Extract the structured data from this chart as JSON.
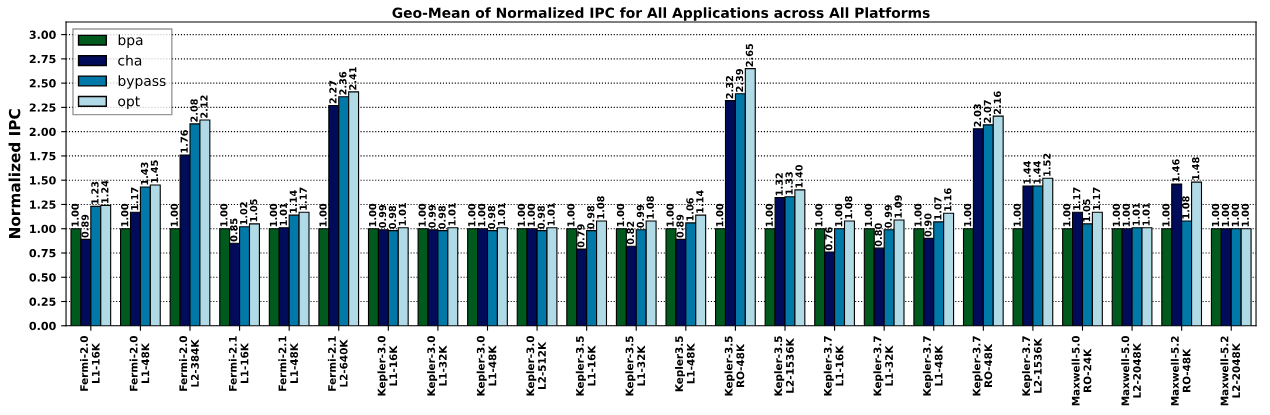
{
  "chart_data": {
    "type": "bar",
    "title": "Geo-Mean of Normalized IPC for All Applications across All Platforms",
    "ylabel": "Normalized IPC",
    "categories": [
      "Fermi-2.0\nL1-16K",
      "Fermi-2.0\nL1-48K",
      "Fermi-2.0\nL2-384K",
      "Fermi-2.1\nL1-16K",
      "Fermi-2.1\nL1-48K",
      "Fermi-2.1\nL2-640K",
      "Kepler-3.0\nL1-16K",
      "Kepler-3.0\nL1-32K",
      "Kepler-3.0\nL1-48K",
      "Kepler-3.0\nL2-512K",
      "Kepler-3.5\nL1-16K",
      "Kepler-3.5\nL1-32K",
      "Kepler3.5\nL1-48K",
      "Kepler-3.5\nRO-48K",
      "Kepler-3.5\nL2-1536K",
      "Kepler-3.7\nL1-16K",
      "Kepler-3.7\nL1-32K",
      "Kepler-3.7\nL1-48K",
      "Kepler-3.7\nRO-48K",
      "Kepler-3.7\nL2-1536K",
      "Maxwell-5.0\nRO-24K",
      "Maxwell-5.0\nL2-2048K",
      "Maxwell-5.2\nRO-48K",
      "Maxwell-5.2\nL2-2048K"
    ],
    "series": [
      {
        "name": "bpa",
        "color": "#005a1e",
        "values": [
          1.0,
          1.0,
          1.0,
          1.0,
          1.0,
          1.0,
          1.0,
          1.0,
          1.0,
          1.0,
          1.0,
          1.0,
          1.0,
          1.0,
          1.0,
          1.0,
          1.0,
          1.0,
          1.0,
          1.0,
          1.0,
          1.0,
          1.0,
          1.0
        ],
        "value_labels": [
          "1.00",
          "1.00",
          "1.00",
          "1.00",
          "1.00",
          "1.00",
          "1.00",
          "1.00",
          "1.00",
          "1.00",
          "1.00",
          "1.00",
          "1.00",
          "1.00",
          "1.00",
          "1.00",
          "1.00",
          "1.00",
          "1.00",
          "1.00",
          "1.00",
          "1.00",
          "1.00",
          "1.00"
        ]
      },
      {
        "name": "cha",
        "color": "#000c5a",
        "values": [
          0.89,
          1.17,
          1.76,
          0.85,
          1.01,
          2.27,
          0.99,
          0.99,
          1.0,
          1.0,
          0.79,
          0.82,
          0.89,
          2.32,
          1.32,
          0.76,
          0.8,
          0.9,
          2.03,
          1.44,
          1.17,
          1.0,
          1.46,
          1.0
        ],
        "value_labels": [
          "0.89",
          "1.17",
          "1.76",
          "0.85",
          "1.01",
          "2.27",
          "0.99",
          "0.99",
          "1.00",
          "1.00",
          "0.79",
          "0.82",
          "0.89",
          "2.32",
          "1.32",
          "0.76",
          "0.80",
          "0.90",
          "2.03",
          "1.44",
          "1.17",
          "1.00",
          "1.46",
          "1.00"
        ]
      },
      {
        "name": "bypass",
        "color": "#0078a8",
        "values": [
          1.23,
          1.43,
          2.08,
          1.02,
          1.14,
          2.36,
          0.98,
          0.98,
          0.98,
          0.98,
          0.98,
          0.99,
          1.06,
          2.39,
          1.33,
          1.0,
          0.99,
          1.07,
          2.07,
          1.44,
          1.05,
          1.01,
          1.08,
          1.0
        ],
        "value_labels": [
          "1.23",
          "1.43",
          "2.08",
          "1.02",
          "1.14",
          "2.36",
          "0.98",
          "0.98",
          "0.98",
          "0.98",
          "0.98",
          "0.99",
          "1.06",
          "2.39",
          "1.33",
          "1.00",
          "0.99",
          "1.07",
          "2.07",
          "1.44",
          "1.05",
          "1.01",
          "1.08",
          "1.00"
        ]
      },
      {
        "name": "opt",
        "color": "#b0dae6",
        "values": [
          1.24,
          1.45,
          2.12,
          1.05,
          1.17,
          2.41,
          1.01,
          1.01,
          1.01,
          1.01,
          1.08,
          1.08,
          1.14,
          2.65,
          1.4,
          1.08,
          1.09,
          1.16,
          2.16,
          1.52,
          1.17,
          1.01,
          1.48,
          1.0
        ],
        "value_labels": [
          "1.24",
          "1.45",
          "2.12",
          "1.05",
          "1.17",
          "2.41",
          "1.01",
          "1.01",
          "1.01",
          "1.01",
          "1.08",
          "1.08",
          "1.14",
          "2.65",
          "1.40",
          "1.08",
          "1.09",
          "1.16",
          "2.16",
          "1.52",
          "1.17",
          "1.01",
          "1.48",
          "1.00"
        ]
      }
    ],
    "ylim": [
      0,
      3.13
    ],
    "yticks": [
      {
        "value": 0,
        "label": "0.00"
      },
      {
        "value": 0.25,
        "label": "0.25"
      },
      {
        "value": 0.5,
        "label": "0.50"
      },
      {
        "value": 0.75,
        "label": "0.75"
      },
      {
        "value": 1,
        "label": "1.00"
      },
      {
        "value": 1.25,
        "label": "1.25"
      },
      {
        "value": 1.5,
        "label": "1.50"
      },
      {
        "value": 1.75,
        "label": "1.75"
      },
      {
        "value": 2,
        "label": "2.00"
      },
      {
        "value": 2.25,
        "label": "2.25"
      },
      {
        "value": 2.5,
        "label": "2.50"
      },
      {
        "value": 2.75,
        "label": "2.75"
      },
      {
        "value": 3,
        "label": "3.00"
      }
    ],
    "grid": "y",
    "legend": "top left"
  }
}
